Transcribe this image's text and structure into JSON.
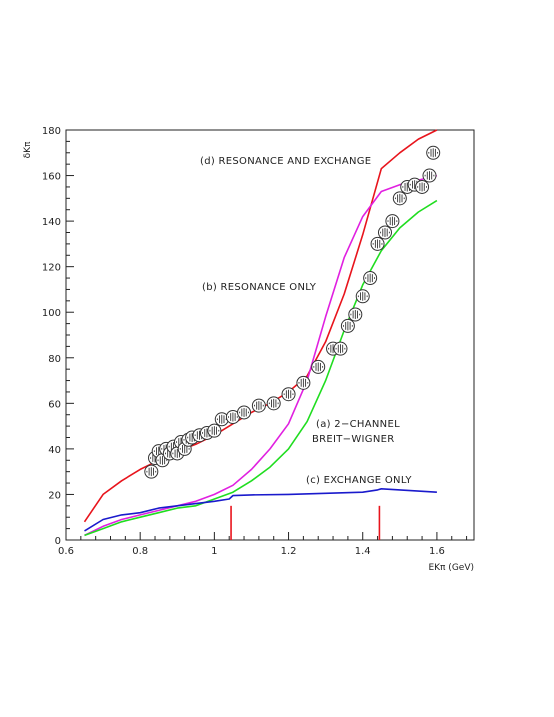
{
  "chart_data": {
    "type": "line",
    "ylabel": "δKπ",
    "xlabel": "EKπ (GeV)",
    "xlim": [
      0.6,
      1.7
    ],
    "ylim": [
      0,
      180
    ],
    "xticks": [
      0.6,
      0.8,
      1,
      1.2,
      1.4,
      1.6
    ],
    "xtick_labels": [
      "0.6",
      "0.8",
      "1",
      "1.2",
      "1.4",
      "1.6"
    ],
    "yticks": [
      0,
      20,
      40,
      60,
      80,
      100,
      120,
      140,
      160,
      180
    ],
    "ytick_labels": [
      "0",
      "20",
      "40",
      "60",
      "80",
      "100",
      "120",
      "140",
      "160",
      "180"
    ],
    "grid": false,
    "annotations": [
      {
        "id": "d",
        "text": "(d) RESONANCE AND EXCHANGE"
      },
      {
        "id": "b",
        "text": "(b) RESONANCE ONLY"
      },
      {
        "id": "a1",
        "text": "(a) 2−CHANNEL"
      },
      {
        "id": "a2",
        "text": "BREIT−WIGNER"
      },
      {
        "id": "c",
        "text": "(c) EXCHANGE ONLY"
      }
    ],
    "series": [
      {
        "color": "#e8141c",
        "x": [
          0.65,
          0.7,
          0.75,
          0.8,
          0.85,
          0.9,
          0.95,
          1.0,
          1.05,
          1.1,
          1.15,
          1.2,
          1.25,
          1.3,
          1.35,
          1.4,
          1.45,
          1.5,
          1.55,
          1.6
        ],
        "y": [
          8,
          20,
          26,
          31,
          35,
          39,
          42,
          46,
          51,
          56,
          60,
          65,
          72,
          87,
          108,
          134,
          163,
          170,
          176,
          180
        ]
      },
      {
        "color": "#e020e0",
        "x": [
          0.65,
          0.7,
          0.75,
          0.8,
          0.85,
          0.9,
          0.95,
          1.0,
          1.05,
          1.1,
          1.15,
          1.2,
          1.25,
          1.3,
          1.35,
          1.4,
          1.45,
          1.5,
          1.55,
          1.6
        ],
        "y": [
          2,
          6,
          9,
          11,
          13,
          15,
          17,
          20,
          24,
          31,
          40,
          51,
          70,
          98,
          124,
          142,
          153,
          156,
          158,
          160
        ]
      },
      {
        "color": "#20dd20",
        "x": [
          0.65,
          0.7,
          0.75,
          0.8,
          0.85,
          0.9,
          0.95,
          1.0,
          1.05,
          1.1,
          1.15,
          1.2,
          1.25,
          1.3,
          1.35,
          1.4,
          1.45,
          1.5,
          1.55,
          1.6
        ],
        "y": [
          2,
          5,
          8,
          10,
          12,
          14,
          15,
          18,
          21,
          26,
          32,
          40,
          52,
          70,
          92,
          112,
          127,
          137,
          144,
          149
        ]
      },
      {
        "color": "#1a1acc",
        "x": [
          0.65,
          0.7,
          0.75,
          0.8,
          0.85,
          0.9,
          0.95,
          1.0,
          1.04,
          1.05,
          1.1,
          1.2,
          1.3,
          1.4,
          1.44,
          1.45,
          1.5,
          1.6
        ],
        "y": [
          4,
          9,
          11,
          12,
          14,
          15,
          16,
          17,
          18,
          19.5,
          19.8,
          20,
          20.5,
          21,
          22,
          22.5,
          22,
          21
        ]
      }
    ],
    "points": {
      "x": [
        0.83,
        0.84,
        0.85,
        0.86,
        0.87,
        0.88,
        0.89,
        0.9,
        0.91,
        0.92,
        0.93,
        0.94,
        0.96,
        0.98,
        1.0,
        1.02,
        1.05,
        1.08,
        1.12,
        1.16,
        1.2,
        1.24,
        1.28,
        1.32,
        1.34,
        1.36,
        1.38,
        1.4,
        1.42,
        1.44,
        1.46,
        1.48,
        1.5,
        1.52,
        1.54,
        1.56,
        1.58,
        1.59
      ],
      "y": [
        30,
        36,
        39,
        35,
        40,
        38,
        41,
        38,
        43,
        40,
        44,
        45,
        46,
        47,
        48,
        53,
        54,
        56,
        59,
        60,
        64,
        69,
        76,
        84,
        84,
        94,
        99,
        107,
        115,
        130,
        135,
        140,
        150,
        155,
        156,
        155,
        160,
        170
      ]
    },
    "threshold_marks": [
      1.045,
      1.445
    ]
  }
}
